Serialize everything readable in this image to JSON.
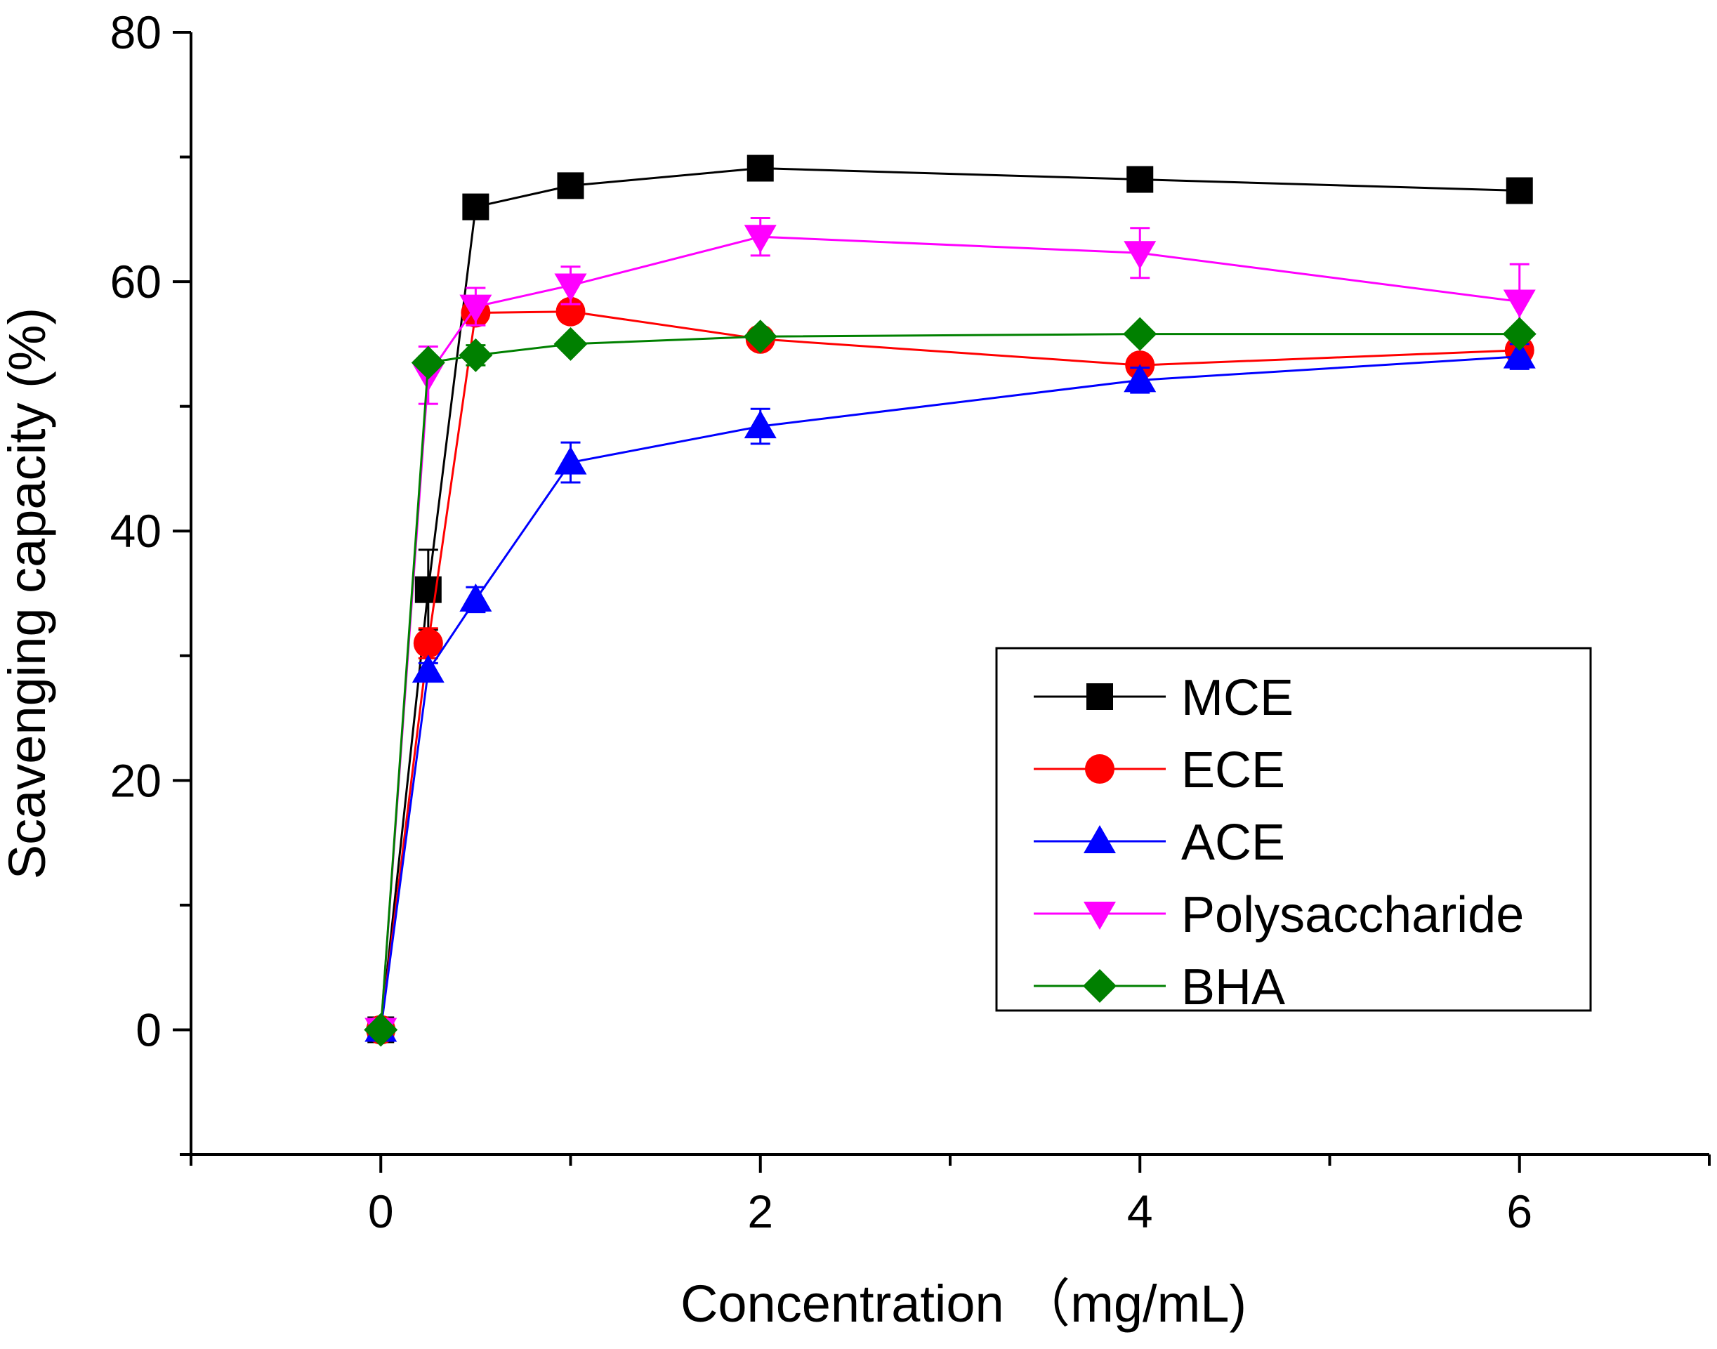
{
  "chart_data": {
    "type": "line",
    "title": "",
    "xlabel": "Concentration （mg/mL)",
    "ylabel": "Scavenging capacity (%)",
    "xlim": [
      -1,
      7
    ],
    "ylim": [
      -10,
      80
    ],
    "x_ticks": [
      0,
      2,
      4,
      6
    ],
    "x_tick_labels": [
      "0",
      "2",
      "4",
      "6"
    ],
    "y_ticks": [
      0,
      20,
      40,
      60,
      80
    ],
    "y_tick_labels": [
      "0",
      "20",
      "40",
      "60",
      "80"
    ],
    "x_minor_ticks": [
      -1,
      1,
      3,
      5,
      7
    ],
    "y_minor_ticks": [
      -10,
      10,
      30,
      50,
      70
    ],
    "grid": false,
    "legend_position": "right-center",
    "x": [
      0,
      0.25,
      0.5,
      1,
      2,
      4,
      6
    ],
    "series": [
      {
        "name": "MCE",
        "color": "#000000",
        "marker": "square",
        "values": [
          0,
          35.3,
          66.0,
          67.7,
          69.1,
          68.2,
          67.3
        ],
        "errors": [
          0,
          3.2,
          0.5,
          0.5,
          0.5,
          0.5,
          0.5
        ]
      },
      {
        "name": "ECE",
        "color": "#ff0000",
        "marker": "circle",
        "values": [
          0,
          31.0,
          57.5,
          57.6,
          55.4,
          53.3,
          54.5
        ],
        "errors": [
          0,
          1.2,
          0.8,
          0.5,
          0.5,
          0.5,
          0.5
        ]
      },
      {
        "name": "ACE",
        "color": "#0000ff",
        "marker": "triangle-up",
        "values": [
          0,
          28.8,
          34.5,
          45.5,
          48.4,
          52.1,
          54.0
        ],
        "errors": [
          0,
          0.6,
          1.0,
          1.6,
          1.4,
          1.0,
          1.0
        ]
      },
      {
        "name": "Polysaccharide",
        "color": "#ff00ff",
        "marker": "triangle-down",
        "values": [
          0,
          52.5,
          58.0,
          59.7,
          63.6,
          62.3,
          58.4
        ],
        "errors": [
          0,
          2.3,
          1.5,
          1.5,
          1.5,
          2.0,
          3.0
        ]
      },
      {
        "name": "BHA",
        "color": "#008000",
        "marker": "diamond",
        "values": [
          0,
          53.5,
          54.1,
          55.0,
          55.6,
          55.8,
          55.8
        ],
        "errors": [
          0,
          0.5,
          0.8,
          0.5,
          0.5,
          0.5,
          0.5
        ]
      }
    ]
  }
}
